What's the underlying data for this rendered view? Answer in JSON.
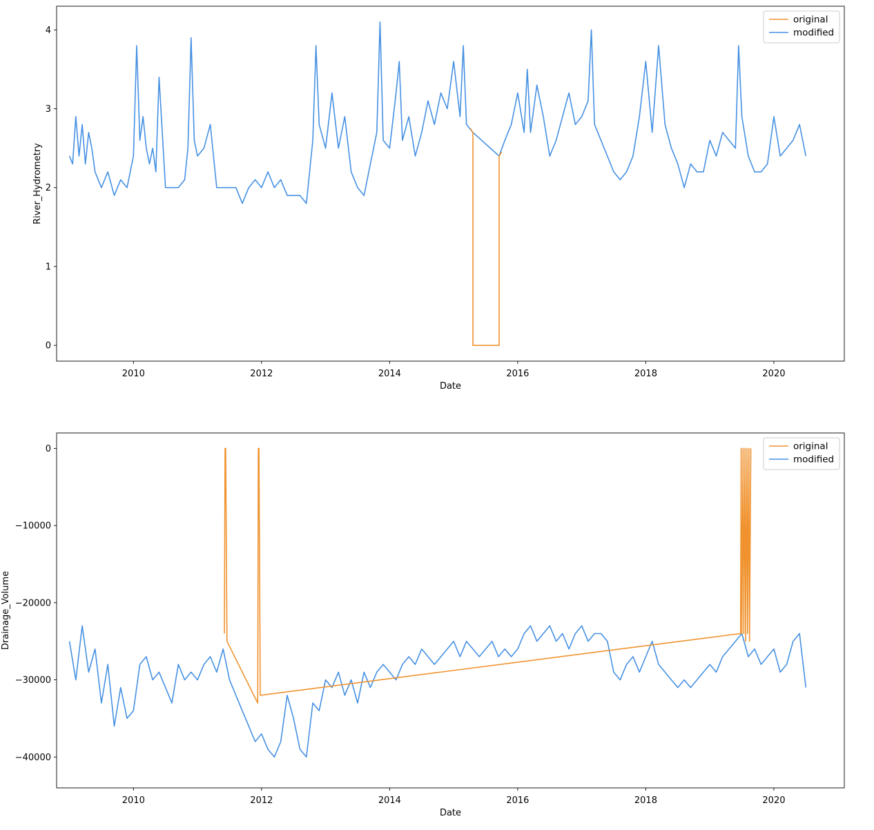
{
  "chart_data": [
    {
      "type": "line",
      "xlabel": "Date",
      "ylabel": "River_Hydrometry",
      "xlim": [
        2008.8,
        2021.1
      ],
      "ylim": [
        -0.2,
        4.3
      ],
      "xticks": [
        2010,
        2012,
        2014,
        2016,
        2018,
        2020
      ],
      "xtick_labels": [
        "2010",
        "2012",
        "2014",
        "2016",
        "2018",
        "2020"
      ],
      "yticks": [
        0,
        1,
        2,
        3,
        4
      ],
      "ytick_labels": [
        "0",
        "1",
        "2",
        "3",
        "4"
      ],
      "legend": {
        "position": "upper right",
        "entries": [
          "original",
          "modified"
        ]
      },
      "grid": false,
      "series": [
        {
          "name": "original",
          "color": "#f0922e",
          "x": [
            2015.26,
            2015.3,
            2015.3,
            2015.71,
            2015.71,
            2015.75
          ],
          "y": [
            2.75,
            2.7,
            0.0,
            0.0,
            2.4,
            2.45
          ]
        },
        {
          "name": "modified",
          "color": "#4590e3",
          "x": [
            2009.0,
            2009.05,
            2009.1,
            2009.15,
            2009.2,
            2009.25,
            2009.3,
            2009.35,
            2009.4,
            2009.45,
            2009.5,
            2009.6,
            2009.7,
            2009.8,
            2009.9,
            2010.0,
            2010.05,
            2010.1,
            2010.15,
            2010.2,
            2010.25,
            2010.3,
            2010.35,
            2010.4,
            2010.5,
            2010.6,
            2010.7,
            2010.8,
            2010.85,
            2010.9,
            2010.95,
            2011.0,
            2011.1,
            2011.2,
            2011.3,
            2011.4,
            2011.5,
            2011.6,
            2011.7,
            2011.8,
            2011.9,
            2012.0,
            2012.1,
            2012.2,
            2012.3,
            2012.4,
            2012.5,
            2012.6,
            2012.7,
            2012.8,
            2012.85,
            2012.9,
            2013.0,
            2013.1,
            2013.2,
            2013.3,
            2013.4,
            2013.5,
            2013.6,
            2013.7,
            2013.8,
            2013.85,
            2013.9,
            2014.0,
            2014.1,
            2014.15,
            2014.2,
            2014.3,
            2014.4,
            2014.5,
            2014.6,
            2014.7,
            2014.8,
            2014.9,
            2015.0,
            2015.1,
            2015.15,
            2015.2,
            2015.3,
            2015.71,
            2015.8,
            2015.9,
            2016.0,
            2016.1,
            2016.15,
            2016.2,
            2016.3,
            2016.4,
            2016.5,
            2016.6,
            2016.7,
            2016.8,
            2016.9,
            2017.0,
            2017.1,
            2017.15,
            2017.2,
            2017.3,
            2017.4,
            2017.5,
            2017.6,
            2017.7,
            2017.8,
            2017.9,
            2018.0,
            2018.1,
            2018.2,
            2018.3,
            2018.4,
            2018.5,
            2018.6,
            2018.7,
            2018.8,
            2018.9,
            2019.0,
            2019.1,
            2019.2,
            2019.3,
            2019.4,
            2019.45,
            2019.5,
            2019.6,
            2019.7,
            2019.8,
            2019.9,
            2020.0,
            2020.1,
            2020.2,
            2020.3,
            2020.4,
            2020.5
          ],
          "y": [
            2.4,
            2.3,
            2.9,
            2.4,
            2.8,
            2.3,
            2.7,
            2.5,
            2.2,
            2.1,
            2.0,
            2.2,
            1.9,
            2.1,
            2.0,
            2.4,
            3.8,
            2.6,
            2.9,
            2.5,
            2.3,
            2.5,
            2.2,
            3.4,
            2.0,
            2.0,
            2.0,
            2.1,
            2.5,
            3.9,
            2.6,
            2.4,
            2.5,
            2.8,
            2.0,
            2.0,
            2.0,
            2.0,
            1.8,
            2.0,
            2.1,
            2.0,
            2.2,
            2.0,
            2.1,
            1.9,
            1.9,
            1.9,
            1.8,
            2.6,
            3.8,
            2.8,
            2.5,
            3.2,
            2.5,
            2.9,
            2.2,
            2.0,
            1.9,
            2.3,
            2.7,
            4.1,
            2.6,
            2.5,
            3.2,
            3.6,
            2.6,
            2.9,
            2.4,
            2.7,
            3.1,
            2.8,
            3.2,
            3.0,
            3.6,
            2.9,
            3.8,
            2.8,
            2.7,
            2.4,
            2.6,
            2.8,
            3.2,
            2.7,
            3.5,
            2.7,
            3.3,
            2.9,
            2.4,
            2.6,
            2.9,
            3.2,
            2.8,
            2.9,
            3.1,
            4.0,
            2.8,
            2.6,
            2.4,
            2.2,
            2.1,
            2.2,
            2.4,
            2.9,
            3.6,
            2.7,
            3.8,
            2.8,
            2.5,
            2.3,
            2.0,
            2.3,
            2.2,
            2.2,
            2.6,
            2.4,
            2.7,
            2.6,
            2.5,
            3.8,
            2.9,
            2.4,
            2.2,
            2.2,
            2.3,
            2.9,
            2.4,
            2.5,
            2.6,
            2.8,
            2.4
          ]
        }
      ]
    },
    {
      "type": "line",
      "xlabel": "Date",
      "ylabel": "Drainage_Volume",
      "xlim": [
        2008.8,
        2021.1
      ],
      "ylim": [
        -44000,
        2000
      ],
      "xticks": [
        2010,
        2012,
        2014,
        2016,
        2018,
        2020
      ],
      "xtick_labels": [
        "2010",
        "2012",
        "2014",
        "2016",
        "2018",
        "2020"
      ],
      "yticks": [
        0,
        -10000,
        -20000,
        -30000,
        -40000
      ],
      "ytick_labels": [
        "0",
        "−10000",
        "−20000",
        "−30000",
        "−40000"
      ],
      "legend": {
        "position": "upper right",
        "entries": [
          "original",
          "modified"
        ]
      },
      "grid": false,
      "series": [
        {
          "name": "original",
          "color": "#f0922e",
          "x": [
            2011.42,
            2011.43,
            2011.44,
            2011.46,
            2011.94,
            2011.95,
            2011.96,
            2011.98,
            2019.48,
            2019.49,
            2019.5,
            2019.52,
            2019.53,
            2019.55,
            2019.56,
            2019.58,
            2019.59,
            2019.61,
            2019.62,
            2019.64
          ],
          "y": [
            -24000,
            0,
            0,
            -25000,
            -33000,
            0,
            0,
            -32000,
            -24000,
            0,
            -24000,
            0,
            -24000,
            0,
            -25000,
            0,
            -24000,
            0,
            -25000,
            0
          ]
        },
        {
          "name": "modified",
          "color": "#4590e3",
          "x": [
            2009.0,
            2009.1,
            2009.2,
            2009.3,
            2009.4,
            2009.5,
            2009.6,
            2009.7,
            2009.8,
            2009.9,
            2010.0,
            2010.1,
            2010.2,
            2010.3,
            2010.4,
            2010.5,
            2010.6,
            2010.7,
            2010.8,
            2010.9,
            2011.0,
            2011.1,
            2011.2,
            2011.3,
            2011.4,
            2011.5,
            2011.6,
            2011.7,
            2011.8,
            2011.9,
            2012.0,
            2012.1,
            2012.2,
            2012.3,
            2012.4,
            2012.5,
            2012.6,
            2012.7,
            2012.8,
            2012.9,
            2013.0,
            2013.1,
            2013.2,
            2013.3,
            2013.4,
            2013.5,
            2013.6,
            2013.7,
            2013.8,
            2013.9,
            2014.0,
            2014.1,
            2014.2,
            2014.3,
            2014.4,
            2014.5,
            2014.6,
            2014.7,
            2014.8,
            2014.9,
            2015.0,
            2015.1,
            2015.2,
            2015.3,
            2015.4,
            2015.5,
            2015.6,
            2015.7,
            2015.8,
            2015.9,
            2016.0,
            2016.1,
            2016.2,
            2016.3,
            2016.4,
            2016.5,
            2016.6,
            2016.7,
            2016.8,
            2016.9,
            2017.0,
            2017.1,
            2017.2,
            2017.3,
            2017.4,
            2017.5,
            2017.6,
            2017.7,
            2017.8,
            2017.9,
            2018.0,
            2018.1,
            2018.2,
            2018.3,
            2018.4,
            2018.5,
            2018.6,
            2018.7,
            2018.8,
            2018.9,
            2019.0,
            2019.1,
            2019.2,
            2019.3,
            2019.4,
            2019.5,
            2019.6,
            2019.7,
            2019.8,
            2019.9,
            2020.0,
            2020.1,
            2020.2,
            2020.3,
            2020.4,
            2020.5
          ],
          "y": [
            -25000,
            -30000,
            -23000,
            -29000,
            -26000,
            -33000,
            -28000,
            -36000,
            -31000,
            -35000,
            -34000,
            -28000,
            -27000,
            -30000,
            -29000,
            -31000,
            -33000,
            -28000,
            -30000,
            -29000,
            -30000,
            -28000,
            -27000,
            -29000,
            -26000,
            -30000,
            -32000,
            -34000,
            -36000,
            -38000,
            -37000,
            -39000,
            -40000,
            -38000,
            -32000,
            -35000,
            -39000,
            -40000,
            -33000,
            -34000,
            -30000,
            -31000,
            -29000,
            -32000,
            -30000,
            -33000,
            -29000,
            -31000,
            -29000,
            -28000,
            -29000,
            -30000,
            -28000,
            -27000,
            -28000,
            -26000,
            -27000,
            -28000,
            -27000,
            -26000,
            -25000,
            -27000,
            -25000,
            -26000,
            -27000,
            -26000,
            -25000,
            -27000,
            -26000,
            -27000,
            -26000,
            -24000,
            -23000,
            -25000,
            -24000,
            -23000,
            -25000,
            -24000,
            -26000,
            -24000,
            -23000,
            -25000,
            -24000,
            -24000,
            -25000,
            -29000,
            -30000,
            -28000,
            -27000,
            -29000,
            -27000,
            -25000,
            -28000,
            -29000,
            -30000,
            -31000,
            -30000,
            -31000,
            -30000,
            -29000,
            -28000,
            -29000,
            -27000,
            -26000,
            -25000,
            -24000,
            -27000,
            -26000,
            -28000,
            -27000,
            -26000,
            -29000,
            -28000,
            -25000,
            -24000,
            -31000
          ]
        }
      ]
    }
  ]
}
